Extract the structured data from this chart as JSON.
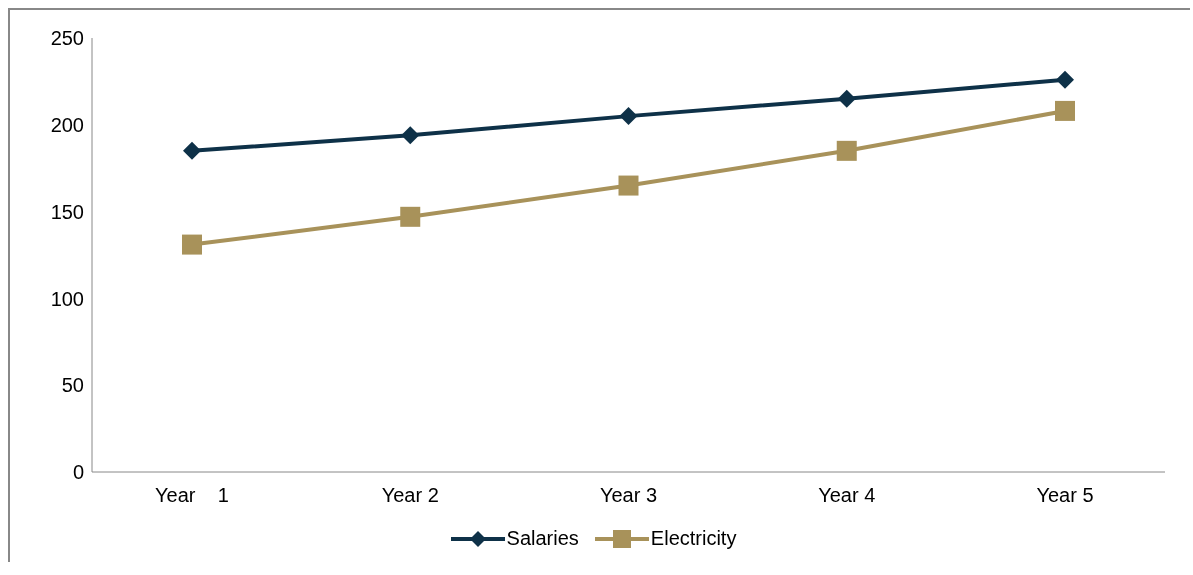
{
  "chart_data": {
    "type": "line",
    "categories": [
      "Year    1",
      "Year 2",
      "Year 3",
      "Year 4",
      "Year 5"
    ],
    "series": [
      {
        "name": "Salaries",
        "color": "#0e3148",
        "marker": "diamond",
        "values": [
          185,
          194,
          205,
          215,
          226
        ]
      },
      {
        "name": "Electricity",
        "color": "#a8925a",
        "marker": "square",
        "values": [
          131,
          147,
          165,
          185,
          208
        ]
      }
    ],
    "ylim": [
      0,
      250
    ],
    "yticks": [
      0,
      50,
      100,
      150,
      200,
      250
    ],
    "grid": false,
    "legend": "bottom"
  }
}
